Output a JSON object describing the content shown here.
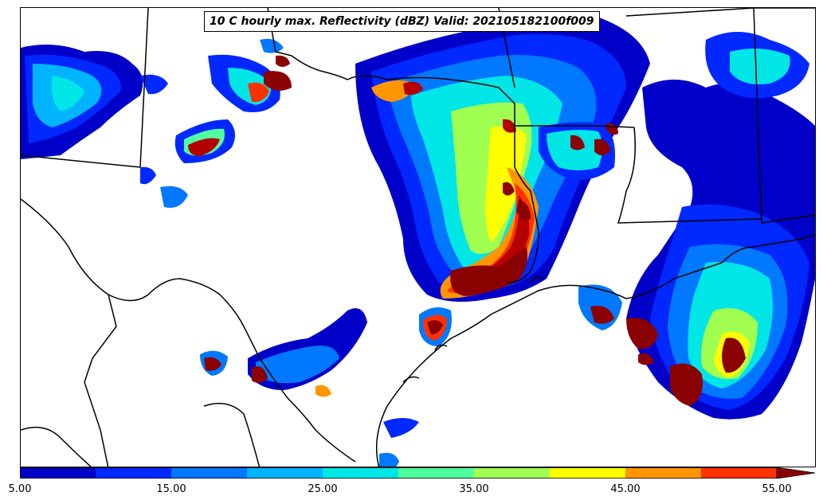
{
  "title": "10 C hourly max. Reflectivity (dBZ) Valid: 202105182100f009",
  "colorbar": {
    "min": 5,
    "max": 55,
    "extend": "max",
    "levels": [
      5,
      10,
      15,
      20,
      25,
      30,
      35,
      40,
      45,
      50,
      55
    ],
    "colors": [
      "#0000c8",
      "#0028ff",
      "#0078ff",
      "#00b4ff",
      "#00e6e6",
      "#50ffa0",
      "#a0ff50",
      "#ffff00",
      "#ff9600",
      "#ff3200",
      "#b40000"
    ],
    "overflow_color": "#8b0000",
    "tick_labels": [
      "5.00",
      "15.00",
      "25.00",
      "35.00",
      "45.00",
      "55.00"
    ]
  },
  "map": {
    "basemap": "state and national boundaries, coastline",
    "region": "Texas, Louisiana, Oklahoma, Arkansas, Mississippi, northern Mexico"
  }
}
